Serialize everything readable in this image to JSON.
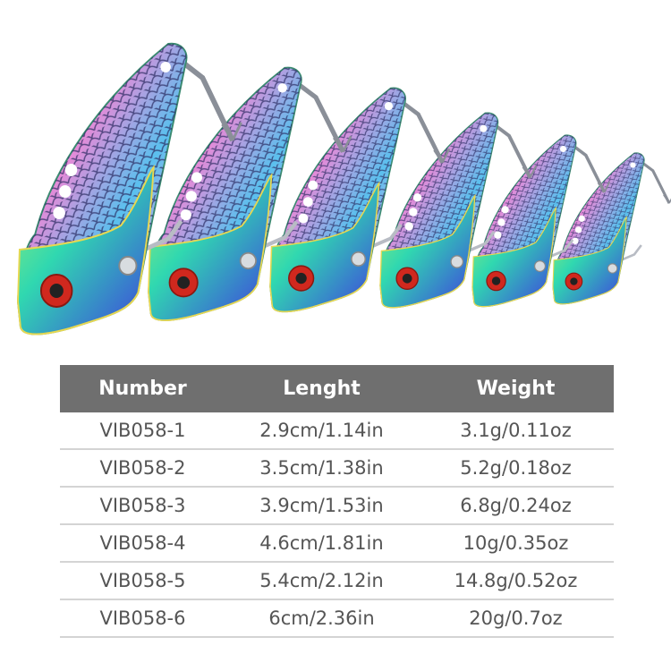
{
  "image": {
    "subject": "vib-blade-lures",
    "lure_count": 6,
    "colors": {
      "scales_pink": "#e98ad8",
      "scales_blue": "#4cc3e8",
      "head_green": "#3fe0a0",
      "eye_red": "#d0281e",
      "belly_purple": "#4a3a8a",
      "hook_gray": "#8a8f98"
    }
  },
  "table": {
    "header_color": "#6f6f6f",
    "columns": [
      "Number",
      "Lenght",
      "Weight"
    ],
    "rows": [
      [
        "VIB058-1",
        "2.9cm/1.14in",
        "3.1g/0.11oz"
      ],
      [
        "VIB058-2",
        "3.5cm/1.38in",
        "5.2g/0.18oz"
      ],
      [
        "VIB058-3",
        "3.9cm/1.53in",
        "6.8g/0.24oz"
      ],
      [
        "VIB058-4",
        "4.6cm/1.81in",
        "10g/0.35oz"
      ],
      [
        "VIB058-5",
        "5.4cm/2.12in",
        "14.8g/0.52oz"
      ],
      [
        "VIB058-6",
        "6cm/2.36in",
        "20g/0.7oz"
      ]
    ]
  }
}
